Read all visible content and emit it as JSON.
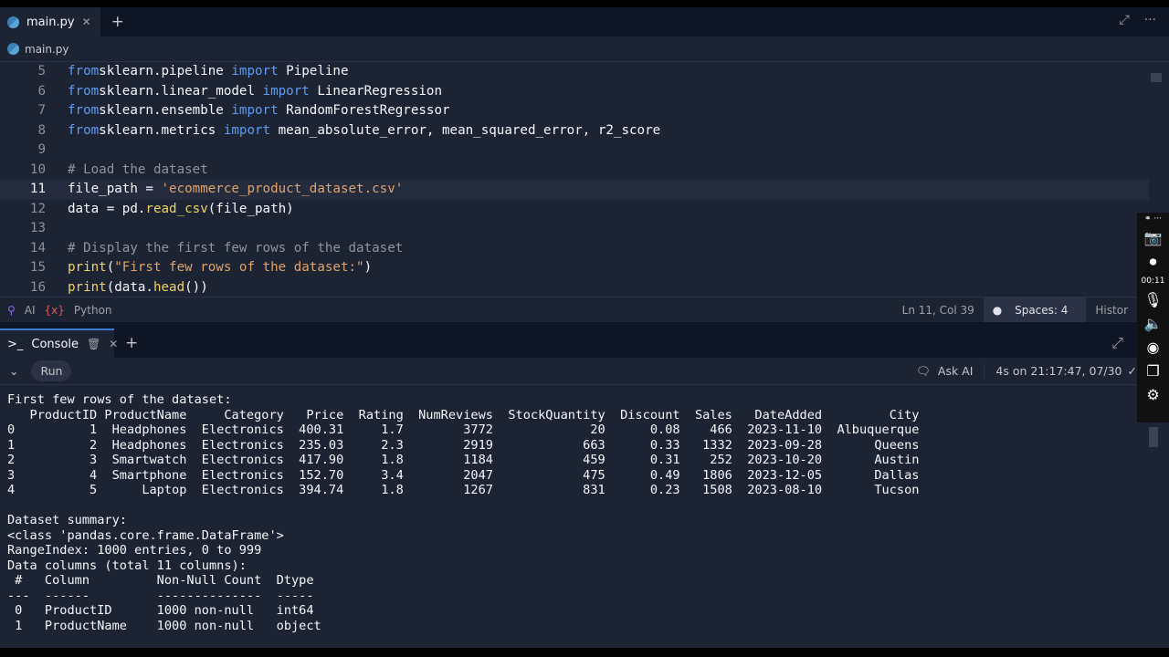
{
  "editor": {
    "tab": "main.py",
    "breadcrumb": "main.py",
    "lines": [
      {
        "n": "5",
        "parts": [
          [
            "kw",
            "from"
          ],
          [
            "",
            "sklearn.pipeline "
          ],
          [
            "kw",
            "import"
          ],
          [
            "",
            " Pipeline"
          ]
        ]
      },
      {
        "n": "6",
        "parts": [
          [
            "kw",
            "from"
          ],
          [
            "",
            "sklearn.linear_model "
          ],
          [
            "kw",
            "import"
          ],
          [
            "",
            " LinearRegression"
          ]
        ]
      },
      {
        "n": "7",
        "parts": [
          [
            "kw",
            "from"
          ],
          [
            "",
            "sklearn.ensemble "
          ],
          [
            "kw",
            "import"
          ],
          [
            "",
            " RandomForestRegressor"
          ]
        ]
      },
      {
        "n": "8",
        "parts": [
          [
            "kw",
            "from"
          ],
          [
            "",
            "sklearn.metrics "
          ],
          [
            "kw",
            "import"
          ],
          [
            "",
            " mean_absolute_error, mean_squared_error, r2_score"
          ]
        ]
      },
      {
        "n": "9",
        "parts": []
      },
      {
        "n": "10",
        "parts": [
          [
            "com",
            "# Load the dataset"
          ]
        ]
      },
      {
        "n": "11",
        "parts": [
          [
            "",
            "file_path = "
          ],
          [
            "str",
            "'ecommerce_product_dataset.csv'"
          ]
        ]
      },
      {
        "n": "12",
        "parts": [
          [
            "",
            "data = pd."
          ],
          [
            "fn",
            "read_csv"
          ],
          [
            "",
            "(file_path)"
          ]
        ]
      },
      {
        "n": "13",
        "parts": []
      },
      {
        "n": "14",
        "parts": [
          [
            "com",
            "# Display the first few rows of the dataset"
          ]
        ]
      },
      {
        "n": "15",
        "parts": [
          [
            "fn",
            "print"
          ],
          [
            "",
            "("
          ],
          [
            "str",
            "\"First few rows of the dataset:\""
          ],
          [
            "",
            ")"
          ]
        ]
      },
      {
        "n": "16",
        "parts": [
          [
            "fn",
            "print"
          ],
          [
            "",
            "(data."
          ],
          [
            "fn",
            "head"
          ],
          [
            "",
            "())"
          ]
        ]
      }
    ],
    "active_line": "11"
  },
  "status": {
    "ai": "AI",
    "lang": "Python",
    "cursor": "Ln 11, Col 39",
    "spaces": "Spaces: 4",
    "history": "Histor"
  },
  "console": {
    "tab": "Console",
    "run": "Run",
    "ask_ai": "Ask AI",
    "time": "4s on 21:17:47, 07/30",
    "output": [
      "First few rows of the dataset:",
      "   ProductID ProductName     Category   Price  Rating  NumReviews  StockQuantity  Discount  Sales   DateAdded         City",
      "0          1  Headphones  Electronics  400.31     1.7        3772             20      0.08    466  2023-11-10  Albuquerque",
      "1          2  Headphones  Electronics  235.03     2.3        2919            663      0.33   1332  2023-09-28       Queens",
      "2          3  Smartwatch  Electronics  417.90     1.8        1184            459      0.31    252  2023-10-20       Austin",
      "3          4  Smartphone  Electronics  152.70     3.4        2047            475      0.49   1806  2023-12-05       Dallas",
      "4          5      Laptop  Electronics  394.74     1.8        1267            831      0.23   1508  2023-08-10       Tucson",
      "",
      "Dataset summary:",
      "<class 'pandas.core.frame.DataFrame'>",
      "RangeIndex: 1000 entries, 0 to 999",
      "Data columns (total 11 columns):",
      " #   Column         Non-Null Count  Dtype ",
      "---  ------         --------------  ----- ",
      " 0   ProductID      1000 non-null   int64 ",
      " 1   ProductName    1000 non-null   object"
    ]
  },
  "recorder": {
    "timer": "00:11"
  }
}
